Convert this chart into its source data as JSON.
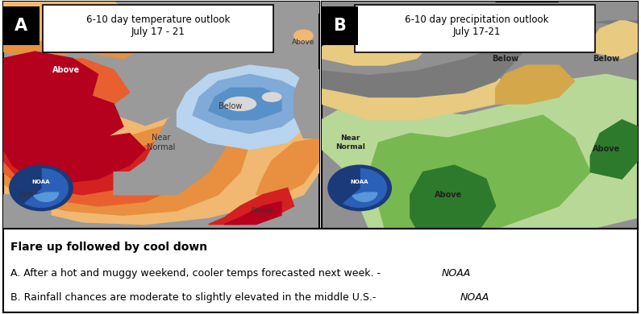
{
  "title_A": "6-10 day temperature outlook\nJuly 17 - 21",
  "title_B": "6-10 day precipitation outlook\nJuly 17-21",
  "label_A": "A",
  "label_B": "B",
  "headline": "Flare up followed by cool down",
  "line_A": "A. After a hot and muggy weekend, cooler temps forecasted next week. - ",
  "line_A_italic": "NOAA",
  "line_B": "B. Rainfall chances are moderate to slightly elevated in the middle U.S.- ",
  "line_B_italic": "NOAA",
  "bg_color": "#ffffff",
  "border_color": "#000000",
  "gray_bg": "#9a9a9a",
  "temp_dark_red": "#b5001e",
  "temp_red": "#d42020",
  "temp_orange_red": "#e86030",
  "temp_orange": "#e89040",
  "temp_light_orange": "#f0b870",
  "temp_tan": "#e8c898",
  "temp_light_blue": "#b8d4ee",
  "temp_blue": "#80aad8",
  "temp_mid_blue": "#5890c8",
  "precip_gray": "#909090",
  "precip_tan": "#d4a84a",
  "precip_light_tan": "#e8cb80",
  "precip_light_green": "#b8d898",
  "precip_green": "#78b850",
  "precip_dark_green": "#2d7a2d",
  "precip_med_green": "#4a9840",
  "noaa_dark_blue": "#1a3a7a",
  "noaa_med_blue": "#2a60b8",
  "noaa_light_blue": "#5898d8"
}
